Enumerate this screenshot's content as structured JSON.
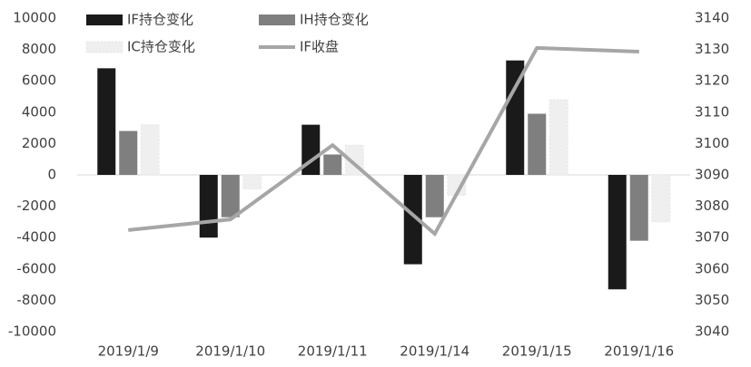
{
  "chart_data": {
    "type": "bar_line",
    "categories": [
      "2019/1/9",
      "2019/1/10",
      "2019/1/11",
      "2019/1/14",
      "2019/1/15",
      "2019/1/16"
    ],
    "series": [
      {
        "name": "IF持仓变化",
        "type": "bar",
        "color": "#1a1a1a",
        "values": [
          6800,
          -4000,
          3200,
          -5700,
          7300,
          -7300
        ]
      },
      {
        "name": "IH持仓变化",
        "type": "bar",
        "color": "#7f7f7f",
        "values": [
          2800,
          -2700,
          1300,
          -2700,
          3900,
          -4200
        ]
      },
      {
        "name": "IC持仓变化",
        "type": "bar",
        "color": "#efefef",
        "values": [
          3200,
          -900,
          1900,
          -1300,
          4800,
          -3000
        ]
      },
      {
        "name": "IF收盘",
        "type": "line",
        "axis": "y2",
        "color": "#a6a6a6",
        "values": [
          3072.4,
          3075.8,
          3099.5,
          3071.2,
          3130.5,
          3129.3
        ]
      }
    ],
    "ylim": [
      -10000,
      10000
    ],
    "yticks": [
      -10000,
      -8000,
      -6000,
      -4000,
      -2000,
      0,
      2000,
      4000,
      6000,
      8000,
      10000
    ],
    "y2lim": [
      3040,
      3140
    ],
    "y2ticks": [
      3040,
      3050,
      3060,
      3070,
      3080,
      3090,
      3100,
      3110,
      3120,
      3130,
      3140
    ]
  }
}
